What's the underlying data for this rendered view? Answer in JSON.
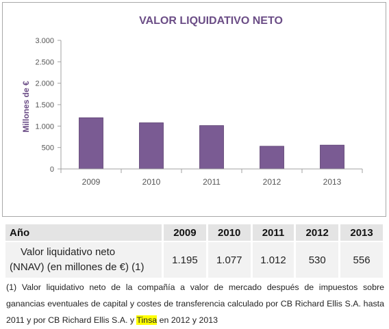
{
  "chart_data": {
    "type": "bar",
    "title": "VALOR LIQUIDATIVO NETO",
    "ylabel": "Millones de €",
    "xlabel": "",
    "categories": [
      "2009",
      "2010",
      "2011",
      "2012",
      "2013"
    ],
    "values": [
      1195,
      1077,
      1012,
      530,
      556
    ],
    "ylim": [
      0,
      3000
    ],
    "yticks": [
      0,
      500,
      1000,
      1500,
      2000,
      2500,
      3000
    ],
    "ytick_labels": [
      "0",
      "500",
      "1.000",
      "1.500",
      "2.000",
      "2.500",
      "3.000"
    ],
    "grid": false,
    "legend": "none"
  },
  "colors": {
    "bar": "#7a5b93",
    "bar_edge": "#5a3f70",
    "title": "#6b4d86",
    "axis_label": "#6b4d86",
    "tick_text": "#555555",
    "axis_line": "#a0a0a0",
    "highlight": "#ffff00"
  },
  "table": {
    "header": {
      "label": "Año",
      "years": [
        "2009",
        "2010",
        "2011",
        "2012",
        "2013"
      ]
    },
    "row": {
      "label_line1": "Valor liquidativo neto",
      "label_line2": "(NNAV) (en millones de €) (1)",
      "values": [
        "1.195",
        "1.077",
        "1.012",
        "530",
        "556"
      ]
    }
  },
  "footnote": {
    "before": "(1) Valor liquidativo neto de la compañía a valor de mercado después de impuestos sobre ganancias eventuales de capital y costes de transferencia calculado por CB Richard Ellis S.A. hasta 2011 y por CB Richard Ellis S.A. y ",
    "highlight": "Tinsa",
    "after": " en 2012 y 2013"
  }
}
